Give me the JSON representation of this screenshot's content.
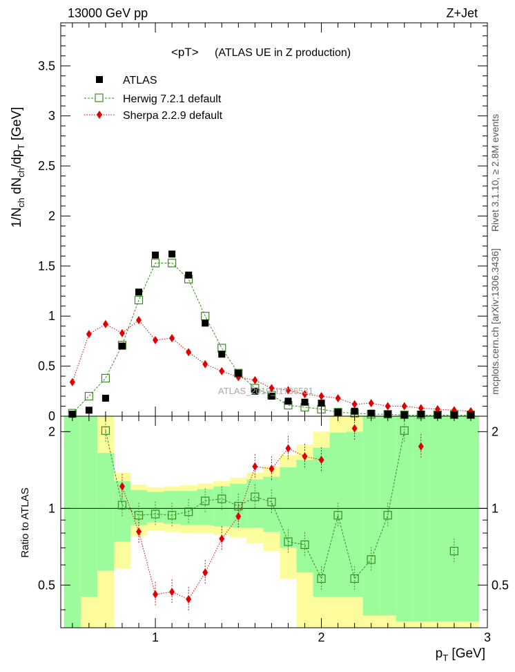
{
  "header": {
    "energy_label": "13000 GeV pp",
    "process_label": "Z+Jet",
    "title": "<pT>",
    "title_note": "(ATLAS UE in Z production)",
    "side_rivet": "Rivet 3.1.10, ≥ 2.8M events",
    "side_mcplots": "mcplots.cern.ch [arXiv:1306.3436]",
    "watermark": "ATLAS_2019_I1736531"
  },
  "axes": {
    "main_ylabel": "1/N_ch dN_ch/dp_T [GeV]",
    "ratio_ylabel": "Ratio to ATLAS",
    "xlabel": "p_T [GeV]"
  },
  "legend": {
    "atlas": "ATLAS",
    "herwig": "Herwig 7.2.1 default",
    "sherpa": "Sherpa 2.2.9 default"
  },
  "chart_data": [
    {
      "type": "scatter",
      "panel": "main",
      "xlim": [
        0.43,
        3.0
      ],
      "ylim": [
        0,
        3.93
      ],
      "xticks": [
        1,
        2,
        3
      ],
      "yticks": [
        0.5,
        1,
        1.5,
        2,
        2.5,
        3,
        3.5
      ],
      "x": [
        0.5,
        0.6,
        0.7,
        0.8,
        0.9,
        1.0,
        1.1,
        1.2,
        1.3,
        1.4,
        1.5,
        1.6,
        1.7,
        1.8,
        1.9,
        2.0,
        2.1,
        2.2,
        2.3,
        2.4,
        2.5,
        2.6,
        2.7,
        2.8,
        2.9
      ],
      "series": [
        {
          "name": "ATLAS",
          "color": "#000000",
          "marker": "square-filled",
          "values": [
            0.02,
            0.06,
            0.18,
            0.7,
            1.24,
            1.61,
            1.62,
            1.41,
            0.93,
            0.62,
            0.43,
            0.25,
            0.2,
            0.15,
            0.14,
            0.13,
            0.04,
            0.05,
            0.03,
            0.02,
            0.01,
            0.02,
            0.01,
            0.01,
            0.01
          ]
        },
        {
          "name": "Herwig 7.2.1 default",
          "color": "#3a8a22",
          "marker": "square-open",
          "values": [
            0.03,
            0.2,
            0.38,
            0.71,
            1.16,
            1.53,
            1.53,
            1.37,
            1.0,
            0.68,
            0.43,
            0.28,
            0.21,
            0.11,
            0.09,
            0.07,
            0.04,
            0.03,
            0.02,
            0.02,
            0.01,
            0.01,
            0.01,
            0.01,
            0.01
          ]
        },
        {
          "name": "Sherpa 2.2.9 default",
          "color": "#e00000",
          "marker": "diamond-filled",
          "values": [
            0.34,
            0.82,
            0.92,
            0.83,
            0.96,
            0.76,
            0.78,
            0.64,
            0.52,
            0.45,
            0.39,
            0.36,
            0.28,
            0.26,
            0.22,
            0.2,
            0.18,
            0.12,
            0.13,
            0.1,
            0.1,
            0.08,
            0.07,
            0.06,
            0.05
          ]
        }
      ]
    },
    {
      "type": "scatter",
      "panel": "ratio",
      "xlim": [
        0.43,
        3.0
      ],
      "ylim": [
        0.34,
        2.3
      ],
      "yscale": "log",
      "xticks": [
        1,
        2,
        3
      ],
      "yticks": [
        0.5,
        1,
        2
      ],
      "reference_line": 1,
      "x": [
        0.5,
        0.6,
        0.7,
        0.8,
        0.9,
        1.0,
        1.1,
        1.2,
        1.3,
        1.4,
        1.5,
        1.6,
        1.7,
        1.8,
        1.9,
        2.0,
        2.1,
        2.2,
        2.3,
        2.4,
        2.5,
        2.6,
        2.7,
        2.8,
        2.9
      ],
      "bands": {
        "inner_color": "#9cfc9c",
        "outer_color": "#fcfc9c",
        "inner_lo": [
          0.34,
          0.45,
          0.57,
          0.74,
          0.86,
          0.88,
          0.87,
          0.86,
          0.86,
          0.85,
          0.84,
          0.84,
          0.81,
          0.7,
          0.56,
          0.45,
          0.45,
          0.45,
          0.38,
          0.38,
          0.36,
          0.36,
          0.36,
          0.36,
          0.36
        ],
        "inner_hi": [
          2.3,
          2.3,
          1.65,
          1.28,
          1.18,
          1.16,
          1.17,
          1.17,
          1.19,
          1.22,
          1.25,
          1.3,
          1.33,
          1.45,
          1.55,
          1.73,
          1.98,
          2.0,
          2.3,
          2.3,
          2.3,
          2.3,
          2.3,
          2.3,
          2.3
        ],
        "outer_lo": [
          0.34,
          0.34,
          0.34,
          0.58,
          0.78,
          0.82,
          0.81,
          0.8,
          0.8,
          0.79,
          0.77,
          0.73,
          0.68,
          0.53,
          0.34,
          0.34,
          0.34,
          0.34,
          0.34,
          0.34,
          0.34,
          0.34,
          0.34,
          0.34,
          0.34
        ],
        "outer_hi": [
          2.3,
          2.3,
          2.3,
          1.38,
          1.24,
          1.21,
          1.22,
          1.23,
          1.25,
          1.28,
          1.32,
          1.38,
          1.46,
          1.62,
          1.78,
          2.0,
          2.3,
          2.3,
          2.3,
          2.3,
          2.3,
          2.3,
          2.3,
          2.3,
          2.3
        ]
      },
      "series": [
        {
          "name": "Herwig 7.2.1 default",
          "color": "#3a8a22",
          "marker": "square-open",
          "values": [
            null,
            null,
            2.02,
            1.03,
            0.94,
            0.95,
            0.94,
            0.97,
            1.07,
            1.09,
            1.02,
            1.11,
            1.06,
            0.74,
            0.72,
            0.53,
            0.94,
            0.53,
            0.63,
            0.94,
            2.02,
            null,
            null,
            0.68,
            null
          ]
        },
        {
          "name": "Sherpa 2.2.9 default",
          "color": "#e00000",
          "marker": "diamond-filled",
          "values": [
            null,
            null,
            null,
            1.22,
            0.81,
            0.46,
            0.47,
            0.44,
            0.56,
            0.76,
            0.93,
            1.46,
            1.43,
            1.72,
            1.6,
            1.55,
            null,
            2.06,
            null,
            null,
            null,
            1.75,
            null,
            null,
            null
          ]
        }
      ]
    }
  ]
}
